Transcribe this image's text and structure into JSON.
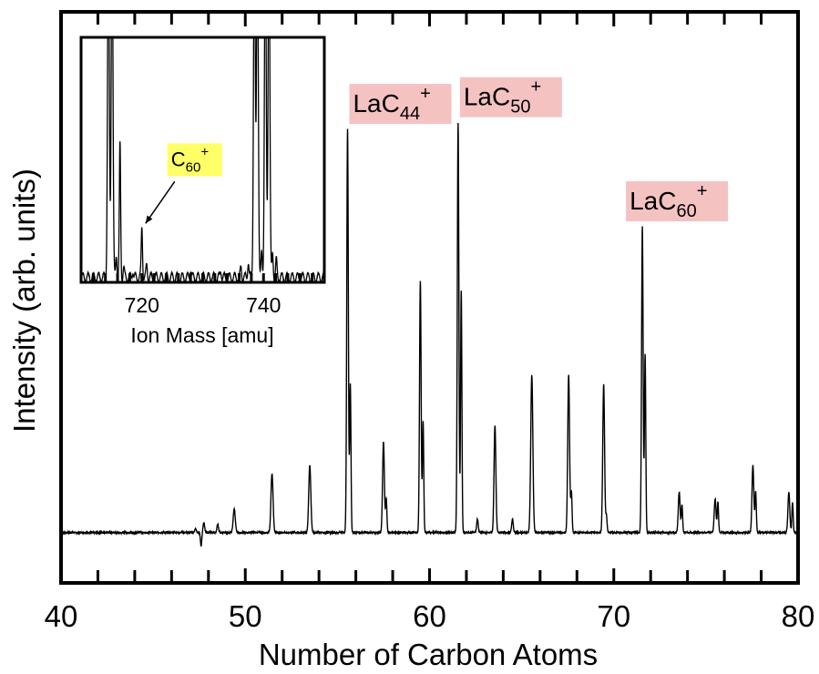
{
  "chart_data": [
    {
      "type": "line",
      "title": "",
      "xlabel": "Number of Carbon Atoms",
      "ylabel": "Intensity (arb. units)",
      "xlim": [
        40,
        80
      ],
      "ylim": [
        -0.15,
        1.55
      ],
      "xticks": [
        40,
        50,
        60,
        70,
        80
      ],
      "xtick_labels": [
        "40",
        "50",
        "60",
        "70",
        "80"
      ],
      "grid": false,
      "legend": "none",
      "series": [
        {
          "color": "#000000",
          "peaks": [
            {
              "x": 47.3,
              "y": 0.012,
              "w": 0.06
            },
            {
              "x": 47.6,
              "y": -0.04,
              "w": 0.05
            },
            {
              "x": 47.75,
              "y": 0.03,
              "w": 0.06
            },
            {
              "x": 48.5,
              "y": 0.025,
              "w": 0.06
            },
            {
              "x": 49.4,
              "y": 0.07,
              "w": 0.08
            },
            {
              "x": 51.45,
              "y": 0.175,
              "w": 0.08
            },
            {
              "x": 53.5,
              "y": 0.2,
              "w": 0.08
            },
            {
              "x": 55.55,
              "y": 1.2,
              "w": 0.06
            },
            {
              "x": 55.7,
              "y": 0.44,
              "w": 0.05
            },
            {
              "x": 57.5,
              "y": 0.27,
              "w": 0.07
            },
            {
              "x": 57.65,
              "y": 0.1,
              "w": 0.05
            },
            {
              "x": 59.5,
              "y": 0.75,
              "w": 0.06
            },
            {
              "x": 59.65,
              "y": 0.33,
              "w": 0.05
            },
            {
              "x": 61.55,
              "y": 1.22,
              "w": 0.06
            },
            {
              "x": 61.72,
              "y": 0.72,
              "w": 0.05
            },
            {
              "x": 62.6,
              "y": 0.04,
              "w": 0.06
            },
            {
              "x": 63.55,
              "y": 0.32,
              "w": 0.07
            },
            {
              "x": 64.5,
              "y": 0.04,
              "w": 0.06
            },
            {
              "x": 65.55,
              "y": 0.47,
              "w": 0.08
            },
            {
              "x": 67.55,
              "y": 0.47,
              "w": 0.07
            },
            {
              "x": 67.7,
              "y": 0.12,
              "w": 0.05
            },
            {
              "x": 69.45,
              "y": 0.44,
              "w": 0.07
            },
            {
              "x": 69.6,
              "y": 0.05,
              "w": 0.05
            },
            {
              "x": 71.55,
              "y": 0.91,
              "w": 0.06
            },
            {
              "x": 71.7,
              "y": 0.53,
              "w": 0.05
            },
            {
              "x": 73.55,
              "y": 0.12,
              "w": 0.07
            },
            {
              "x": 73.7,
              "y": 0.08,
              "w": 0.05
            },
            {
              "x": 75.5,
              "y": 0.1,
              "w": 0.07
            },
            {
              "x": 75.65,
              "y": 0.09,
              "w": 0.05
            },
            {
              "x": 77.55,
              "y": 0.2,
              "w": 0.07
            },
            {
              "x": 77.7,
              "y": 0.12,
              "w": 0.05
            },
            {
              "x": 79.5,
              "y": 0.12,
              "w": 0.07
            },
            {
              "x": 79.7,
              "y": 0.09,
              "w": 0.05
            }
          ]
        }
      ],
      "annotations": [
        {
          "base": "LaC",
          "sub": "44",
          "sup": "+",
          "x": 55.55,
          "color": "#f5c2c2"
        },
        {
          "base": "LaC",
          "sub": "50",
          "sup": "+",
          "x": 61.55,
          "color": "#f5c2c2"
        },
        {
          "base": "LaC",
          "sub": "60",
          "sup": "+",
          "x": 71.55,
          "color": "#f5c2c2"
        }
      ]
    },
    {
      "type": "line",
      "title": "",
      "xlabel": "Ion Mass [amu]",
      "ylabel": "",
      "xlim": [
        710,
        750
      ],
      "ylim": [
        -0.02,
        1.0
      ],
      "xticks": [
        720,
        740
      ],
      "xtick_labels": [
        "720",
        "740"
      ],
      "grid": false,
      "legend": "none",
      "series": [
        {
          "color": "#000000",
          "peaks": [
            {
              "x": 714.5,
              "y": 1.5,
              "w": 0.2
            },
            {
              "x": 715.1,
              "y": 1.5,
              "w": 0.2
            },
            {
              "x": 715.8,
              "y": 0.1,
              "w": 0.15
            },
            {
              "x": 716.4,
              "y": 0.55,
              "w": 0.15
            },
            {
              "x": 717.0,
              "y": 0.04,
              "w": 0.15
            },
            {
              "x": 718.5,
              "y": 0.03,
              "w": 0.15
            },
            {
              "x": 720.0,
              "y": 0.21,
              "w": 0.15
            },
            {
              "x": 720.8,
              "y": 0.05,
              "w": 0.15
            },
            {
              "x": 728.0,
              "y": 0.04,
              "w": 0.15
            },
            {
              "x": 733.0,
              "y": 0.03,
              "w": 0.15
            },
            {
              "x": 736.3,
              "y": 0.04,
              "w": 0.15
            },
            {
              "x": 737.5,
              "y": 0.07,
              "w": 0.15
            },
            {
              "x": 738.5,
              "y": 1.5,
              "w": 0.2
            },
            {
              "x": 739.0,
              "y": 1.5,
              "w": 0.2
            },
            {
              "x": 739.7,
              "y": 0.1,
              "w": 0.15
            },
            {
              "x": 740.3,
              "y": 1.5,
              "w": 0.2
            },
            {
              "x": 740.9,
              "y": 1.5,
              "w": 0.2
            },
            {
              "x": 741.5,
              "y": 0.1,
              "w": 0.15
            },
            {
              "x": 742.1,
              "y": 0.07,
              "w": 0.15
            }
          ]
        }
      ],
      "annotations": [
        {
          "base": "C",
          "sub": "60",
          "sup": "+",
          "x": 720.0,
          "color": "#ffff66"
        }
      ]
    }
  ]
}
